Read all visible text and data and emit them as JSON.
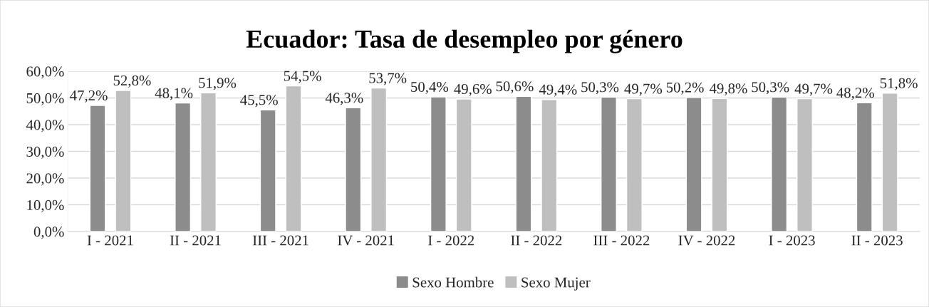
{
  "chart_data": {
    "type": "bar",
    "title": "Ecuador: Tasa de desempleo por género",
    "categories": [
      "I - 2021",
      "II - 2021",
      "III - 2021",
      "IV - 2021",
      "I - 2022",
      "II - 2022",
      "III - 2022",
      "IV - 2022",
      "I - 2023",
      "II - 2023"
    ],
    "series": [
      {
        "name": "Sexo Hombre",
        "color": "#8c8c8c",
        "values": [
          47.2,
          48.1,
          45.5,
          46.3,
          50.4,
          50.6,
          50.3,
          50.2,
          50.3,
          48.2
        ],
        "value_labels": [
          "47,2%",
          "48,1%",
          "45,5%",
          "46,3%",
          "50,4%",
          "50,6%",
          "50,3%",
          "50,2%",
          "50,3%",
          "48,2%"
        ]
      },
      {
        "name": "Sexo Mujer",
        "color": "#bfbfbf",
        "values": [
          52.8,
          51.9,
          54.5,
          53.7,
          49.6,
          49.4,
          49.7,
          49.8,
          49.7,
          51.8
        ],
        "value_labels": [
          "52,8%",
          "51,9%",
          "54,5%",
          "53,7%",
          "49,6%",
          "49,4%",
          "49,7%",
          "49,8%",
          "49,7%",
          "51,8%"
        ]
      }
    ],
    "ylim": [
      0,
      60
    ],
    "yticks": [
      {
        "value": 0,
        "label": "0,0%"
      },
      {
        "value": 10,
        "label": "10,0%"
      },
      {
        "value": 20,
        "label": "20,0%"
      },
      {
        "value": 30,
        "label": "30,0%"
      },
      {
        "value": 40,
        "label": "40,0%"
      },
      {
        "value": 50,
        "label": "50,0%"
      },
      {
        "value": 60,
        "label": "60,0%"
      }
    ],
    "grid": "y",
    "legend": "bottom"
  }
}
